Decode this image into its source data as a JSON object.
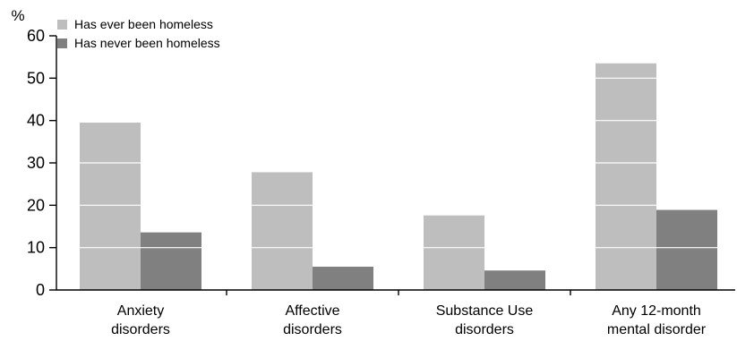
{
  "chart_data": {
    "type": "bar",
    "unit_label": "%",
    "ylim": [
      0,
      60
    ],
    "yticks": [
      0,
      10,
      20,
      30,
      40,
      50,
      60
    ],
    "categories": [
      [
        "Anxiety",
        "disorders"
      ],
      [
        "Affective",
        "disorders"
      ],
      [
        "Substance Use",
        "disorders"
      ],
      [
        "Any 12-month",
        "mental disorder"
      ]
    ],
    "series": [
      {
        "name": "Has ever been homeless",
        "color": "#bebebe",
        "values": [
          39.5,
          27.8,
          17.6,
          53.5
        ]
      },
      {
        "name": "Has never been homeless",
        "color": "#808080",
        "values": [
          13.6,
          5.5,
          4.6,
          18.9
        ]
      }
    ],
    "legend_position": "top-left",
    "gridlines_over_bars": true
  }
}
